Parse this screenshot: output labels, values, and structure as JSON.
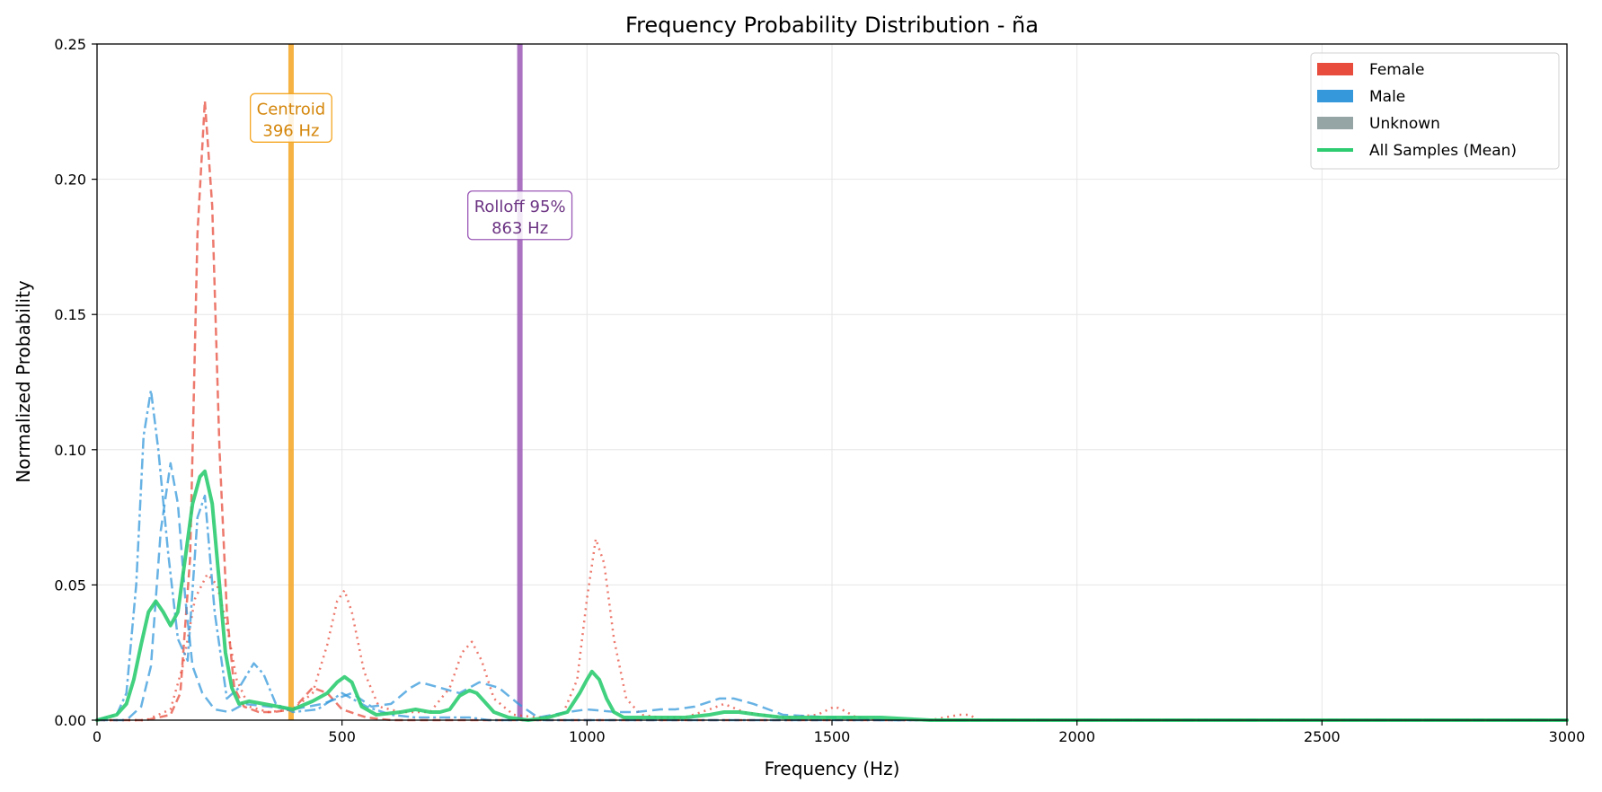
{
  "chart_data": {
    "type": "line",
    "title": "Frequency Probability Distribution - ña",
    "xlabel": "Frequency (Hz)",
    "ylabel": "Normalized Probability",
    "xlim": [
      0,
      3000
    ],
    "ylim": [
      0,
      0.25
    ],
    "xticks": [
      0,
      500,
      1000,
      1500,
      2000,
      2500,
      3000
    ],
    "xtick_labels": [
      "0",
      "500",
      "1000",
      "1500",
      "2000",
      "2500",
      "3000"
    ],
    "yticks": [
      0,
      0.05,
      0.1,
      0.15,
      0.2,
      0.25
    ],
    "ytick_labels": [
      "0.00",
      "0.05",
      "0.10",
      "0.15",
      "0.20",
      "0.25"
    ],
    "grid": true,
    "legend_position": "top-right",
    "legend": [
      {
        "label": "Female",
        "type": "patch",
        "color": "#e74c3c"
      },
      {
        "label": "Male",
        "type": "patch",
        "color": "#3498db"
      },
      {
        "label": "Unknown",
        "type": "patch",
        "color": "#95a5a6"
      },
      {
        "label": "All Samples (Mean)",
        "type": "line",
        "color": "#2ecc71"
      }
    ],
    "vlines": [
      {
        "x": 396,
        "color": "#f5a623",
        "label_lines": [
          "Centroid",
          "396 Hz"
        ],
        "label_color": "#d4860b",
        "label_y": 0.222
      },
      {
        "x": 863,
        "color": "#9b59b6",
        "label_lines": [
          "Rolloff 95%",
          "863 Hz"
        ],
        "label_color": "#6c3483",
        "label_y": 0.186
      }
    ],
    "series": [
      {
        "color": "#e74c3c",
        "dash": "9,5",
        "width": 2.5,
        "opacity": 0.75,
        "x": [
          0,
          100,
          150,
          170,
          190,
          205,
          220,
          235,
          250,
          265,
          280,
          300,
          330,
          360,
          400,
          440,
          470,
          500,
          550,
          600,
          700,
          800,
          1000,
          1500,
          2000,
          3000
        ],
        "y": [
          0,
          0,
          0.002,
          0.01,
          0.06,
          0.18,
          0.229,
          0.19,
          0.1,
          0.04,
          0.012,
          0.005,
          0.003,
          0.003,
          0.004,
          0.012,
          0.01,
          0.004,
          0.001,
          0,
          0,
          0,
          0,
          0,
          0,
          0
        ]
      },
      {
        "color": "#e74c3c",
        "dash": "2,5",
        "width": 2.5,
        "opacity": 0.75,
        "x": [
          0,
          100,
          150,
          175,
          200,
          225,
          245,
          265,
          285,
          310,
          350,
          400,
          440,
          470,
          490,
          505,
          520,
          545,
          575,
          620,
          680,
          720,
          745,
          765,
          785,
          810,
          850,
          900,
          950,
          980,
          1000,
          1018,
          1035,
          1055,
          1080,
          1110,
          1150,
          1200,
          1250,
          1280,
          1320,
          1400,
          1470,
          1505,
          1520,
          1550,
          1600,
          1700,
          1760,
          1780,
          1800,
          1900,
          2200,
          3000
        ],
        "y": [
          0,
          0,
          0.004,
          0.02,
          0.045,
          0.054,
          0.05,
          0.035,
          0.015,
          0.005,
          0.003,
          0.004,
          0.01,
          0.028,
          0.044,
          0.048,
          0.04,
          0.018,
          0.005,
          0.003,
          0.003,
          0.012,
          0.025,
          0.029,
          0.022,
          0.008,
          0.002,
          0.001,
          0.002,
          0.015,
          0.045,
          0.067,
          0.058,
          0.03,
          0.008,
          0.002,
          0.001,
          0.001,
          0.004,
          0.006,
          0.003,
          0.001,
          0.002,
          0.005,
          0.004,
          0.001,
          0,
          0,
          0.002,
          0.002,
          0,
          0,
          0,
          0
        ]
      },
      {
        "color": "#3498db",
        "dash": "12,4,3,4",
        "width": 2.5,
        "opacity": 0.75,
        "x": [
          0,
          40,
          60,
          80,
          95,
          110,
          125,
          145,
          165,
          185,
          205,
          220,
          240,
          265,
          290,
          320,
          340,
          365,
          400,
          450,
          500,
          550,
          600,
          650,
          700,
          760,
          800,
          850,
          900,
          1000,
          1500,
          3000
        ],
        "y": [
          0,
          0.002,
          0.01,
          0.05,
          0.105,
          0.122,
          0.1,
          0.062,
          0.03,
          0.022,
          0.075,
          0.083,
          0.04,
          0.008,
          0.012,
          0.021,
          0.017,
          0.006,
          0.003,
          0.004,
          0.01,
          0.005,
          0.002,
          0.001,
          0.001,
          0.001,
          0,
          0,
          0,
          0,
          0,
          0
        ]
      },
      {
        "color": "#3498db",
        "dash": "12,6",
        "width": 2.5,
        "opacity": 0.75,
        "x": [
          0,
          60,
          90,
          110,
          130,
          150,
          165,
          180,
          195,
          215,
          240,
          270,
          300,
          350,
          400,
          460,
          520,
          560,
          600,
          640,
          660,
          700,
          740,
          780,
          820,
          860,
          900,
          960,
          1000,
          1060,
          1100,
          1150,
          1180,
          1220,
          1270,
          1300,
          1340,
          1400,
          1500,
          1550,
          1600,
          2000,
          3000
        ],
        "y": [
          0,
          0,
          0.005,
          0.02,
          0.07,
          0.095,
          0.08,
          0.045,
          0.02,
          0.01,
          0.004,
          0.003,
          0.006,
          0.005,
          0.004,
          0.006,
          0.01,
          0.005,
          0.006,
          0.012,
          0.014,
          0.012,
          0.01,
          0.014,
          0.012,
          0.006,
          0.001,
          0.003,
          0.004,
          0.003,
          0.003,
          0.004,
          0.004,
          0.005,
          0.008,
          0.008,
          0.006,
          0.002,
          0.001,
          0.001,
          0,
          0,
          0
        ]
      },
      {
        "color": "#2ecc71",
        "dash": "",
        "width": 4,
        "opacity": 0.9,
        "x": [
          0,
          40,
          60,
          75,
          90,
          105,
          120,
          135,
          150,
          165,
          180,
          195,
          210,
          220,
          235,
          250,
          262,
          275,
          290,
          310,
          340,
          370,
          400,
          440,
          470,
          490,
          505,
          520,
          540,
          570,
          620,
          650,
          680,
          700,
          720,
          740,
          760,
          775,
          790,
          810,
          840,
          880,
          920,
          960,
          985,
          1000,
          1010,
          1025,
          1040,
          1055,
          1075,
          1100,
          1150,
          1200,
          1250,
          1280,
          1310,
          1350,
          1400,
          1460,
          1500,
          1550,
          1600,
          1700,
          2000,
          3000
        ],
        "y": [
          0,
          0.002,
          0.006,
          0.015,
          0.028,
          0.04,
          0.044,
          0.04,
          0.035,
          0.04,
          0.06,
          0.08,
          0.09,
          0.092,
          0.08,
          0.05,
          0.025,
          0.012,
          0.006,
          0.007,
          0.006,
          0.005,
          0.004,
          0.007,
          0.01,
          0.014,
          0.016,
          0.014,
          0.005,
          0.002,
          0.003,
          0.004,
          0.003,
          0.003,
          0.004,
          0.009,
          0.011,
          0.01,
          0.007,
          0.003,
          0.001,
          0,
          0.001,
          0.003,
          0.01,
          0.015,
          0.018,
          0.015,
          0.008,
          0.003,
          0.001,
          0.001,
          0.001,
          0.001,
          0.002,
          0.003,
          0.003,
          0.002,
          0.001,
          0.001,
          0.001,
          0.001,
          0.001,
          0,
          0,
          0
        ]
      }
    ]
  }
}
